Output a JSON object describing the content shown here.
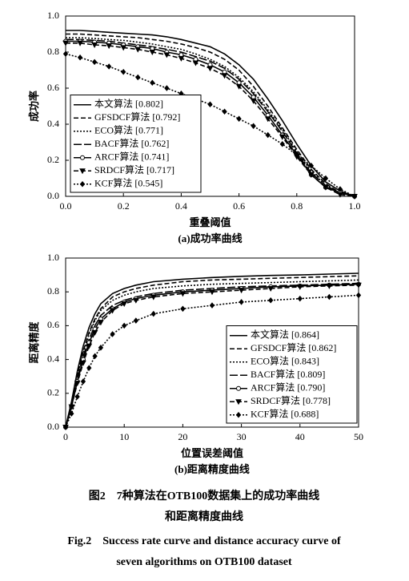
{
  "chart_data": [
    {
      "type": "line",
      "subtitle": "(a)成功率曲线",
      "xlabel": "重叠阈值",
      "ylabel": "成功率",
      "x": [
        0,
        0.05,
        0.1,
        0.15,
        0.2,
        0.25,
        0.3,
        0.35,
        0.4,
        0.45,
        0.5,
        0.55,
        0.6,
        0.65,
        0.7,
        0.75,
        0.8,
        0.85,
        0.9,
        0.95,
        1.0
      ],
      "xlim": [
        0,
        1.0
      ],
      "ylim": [
        0,
        1.0
      ],
      "xticks": [
        {
          "value": 0,
          "label": "0.0"
        },
        0.2,
        0.4,
        0.6,
        0.8,
        {
          "value": 1.0,
          "label": "1.0"
        }
      ],
      "yticks": [
        {
          "value": 0,
          "label": "0.0"
        },
        0.2,
        0.4,
        0.6,
        0.8,
        {
          "value": 1.0,
          "label": "1.0"
        }
      ],
      "legend": "lower left",
      "series": [
        {
          "name": "本文算法 [0.802]",
          "color": "#000",
          "linestyle": "solid",
          "marker": "none",
          "values": [
            0.92,
            0.92,
            0.915,
            0.91,
            0.905,
            0.9,
            0.895,
            0.885,
            0.87,
            0.85,
            0.83,
            0.79,
            0.73,
            0.65,
            0.54,
            0.42,
            0.29,
            0.17,
            0.08,
            0.03,
            0.0
          ]
        },
        {
          "name": "GFSDCF算法 [0.792]",
          "color": "#000",
          "linestyle": "dashed",
          "marker": "none",
          "values": [
            0.9,
            0.9,
            0.895,
            0.89,
            0.885,
            0.88,
            0.87,
            0.86,
            0.845,
            0.825,
            0.8,
            0.76,
            0.7,
            0.61,
            0.5,
            0.38,
            0.26,
            0.15,
            0.07,
            0.02,
            0.0
          ]
        },
        {
          "name": "ECO算法 [0.771]",
          "color": "#000",
          "linestyle": "dotted",
          "marker": "none",
          "values": [
            0.88,
            0.88,
            0.875,
            0.87,
            0.865,
            0.855,
            0.845,
            0.83,
            0.815,
            0.79,
            0.76,
            0.72,
            0.66,
            0.58,
            0.48,
            0.37,
            0.25,
            0.14,
            0.06,
            0.02,
            0.0
          ]
        },
        {
          "name": "BACF算法 [0.762]",
          "color": "#000",
          "linestyle": "longdash",
          "marker": "none",
          "values": [
            0.87,
            0.87,
            0.865,
            0.86,
            0.85,
            0.84,
            0.83,
            0.815,
            0.8,
            0.775,
            0.75,
            0.71,
            0.65,
            0.57,
            0.47,
            0.36,
            0.24,
            0.13,
            0.06,
            0.02,
            0.0
          ]
        },
        {
          "name": "ARCF算法 [0.741]",
          "color": "#000",
          "linestyle": "solid",
          "marker": "circle",
          "values": [
            0.86,
            0.86,
            0.855,
            0.85,
            0.84,
            0.83,
            0.82,
            0.8,
            0.785,
            0.76,
            0.73,
            0.69,
            0.63,
            0.55,
            0.45,
            0.34,
            0.23,
            0.12,
            0.05,
            0.02,
            0.0
          ]
        },
        {
          "name": "SRDCF算法 [0.717]",
          "color": "#000",
          "linestyle": "dashed",
          "marker": "triangle",
          "values": [
            0.85,
            0.85,
            0.84,
            0.835,
            0.825,
            0.815,
            0.8,
            0.785,
            0.765,
            0.74,
            0.71,
            0.67,
            0.61,
            0.53,
            0.43,
            0.33,
            0.22,
            0.12,
            0.05,
            0.01,
            0.0
          ]
        },
        {
          "name": "KCF算法 [0.545]",
          "color": "#000",
          "linestyle": "dotted",
          "marker": "diamond",
          "values": [
            0.79,
            0.77,
            0.745,
            0.72,
            0.69,
            0.66,
            0.63,
            0.6,
            0.57,
            0.54,
            0.51,
            0.47,
            0.43,
            0.39,
            0.34,
            0.29,
            0.23,
            0.17,
            0.1,
            0.04,
            0.0
          ]
        }
      ]
    },
    {
      "type": "line",
      "subtitle": "(b)距离精度曲线",
      "xlabel": "位置误差阈值",
      "ylabel": "距离精度",
      "x": [
        0,
        1,
        2,
        3,
        4,
        5,
        6,
        8,
        10,
        12,
        15,
        20,
        25,
        30,
        35,
        40,
        45,
        50
      ],
      "xlim": [
        0,
        50
      ],
      "ylim": [
        0,
        1.0
      ],
      "xticks": [
        0,
        10,
        20,
        30,
        40,
        50
      ],
      "yticks": [
        {
          "value": 0,
          "label": "0.0"
        },
        0.2,
        0.4,
        0.6,
        0.8,
        {
          "value": 1.0,
          "label": "1.0"
        }
      ],
      "legend": "lower right",
      "series": [
        {
          "name": "本文算法 [0.864]",
          "color": "#000",
          "linestyle": "solid",
          "marker": "none",
          "values": [
            0,
            0.15,
            0.33,
            0.48,
            0.59,
            0.67,
            0.73,
            0.79,
            0.82,
            0.84,
            0.86,
            0.875,
            0.885,
            0.892,
            0.897,
            0.9,
            0.905,
            0.91
          ]
        },
        {
          "name": "GFSDCF算法 [0.862]",
          "color": "#000",
          "linestyle": "dashed",
          "marker": "none",
          "values": [
            0,
            0.14,
            0.31,
            0.45,
            0.56,
            0.64,
            0.7,
            0.77,
            0.8,
            0.82,
            0.84,
            0.86,
            0.87,
            0.875,
            0.88,
            0.885,
            0.89,
            0.895
          ]
        },
        {
          "name": "ECO算法 [0.843]",
          "color": "#000",
          "linestyle": "dotted",
          "marker": "none",
          "values": [
            0,
            0.14,
            0.3,
            0.44,
            0.55,
            0.63,
            0.69,
            0.75,
            0.78,
            0.8,
            0.82,
            0.835,
            0.845,
            0.85,
            0.855,
            0.86,
            0.865,
            0.87
          ]
        },
        {
          "name": "BACF算法 [0.809]",
          "color": "#000",
          "linestyle": "longdash",
          "marker": "none",
          "values": [
            0,
            0.13,
            0.29,
            0.42,
            0.52,
            0.6,
            0.66,
            0.72,
            0.75,
            0.77,
            0.79,
            0.81,
            0.82,
            0.83,
            0.835,
            0.84,
            0.845,
            0.85
          ]
        },
        {
          "name": "ARCF算法 [0.790]",
          "color": "#000",
          "linestyle": "solid",
          "marker": "circle",
          "values": [
            0,
            0.12,
            0.27,
            0.4,
            0.5,
            0.58,
            0.64,
            0.7,
            0.74,
            0.76,
            0.78,
            0.8,
            0.81,
            0.82,
            0.83,
            0.835,
            0.84,
            0.845
          ]
        },
        {
          "name": "SRDCF算法 [0.778]",
          "color": "#000",
          "linestyle": "dashed",
          "marker": "triangle",
          "values": [
            0,
            0.12,
            0.26,
            0.38,
            0.48,
            0.56,
            0.62,
            0.69,
            0.73,
            0.75,
            0.77,
            0.79,
            0.8,
            0.81,
            0.82,
            0.83,
            0.835,
            0.84
          ]
        },
        {
          "name": "KCF算法 [0.688]",
          "color": "#000",
          "linestyle": "dotted",
          "marker": "diamond",
          "values": [
            0,
            0.08,
            0.18,
            0.27,
            0.35,
            0.42,
            0.47,
            0.55,
            0.6,
            0.63,
            0.67,
            0.7,
            0.72,
            0.74,
            0.75,
            0.76,
            0.77,
            0.78
          ]
        }
      ]
    }
  ],
  "caption": {
    "cn": [
      "图2　7种算法在OTB100数据集上的成功率曲线",
      "和距离精度曲线"
    ],
    "en": [
      "Fig.2　Success rate curve and distance accuracy curve of",
      "seven algorithms on OTB100 dataset"
    ]
  }
}
